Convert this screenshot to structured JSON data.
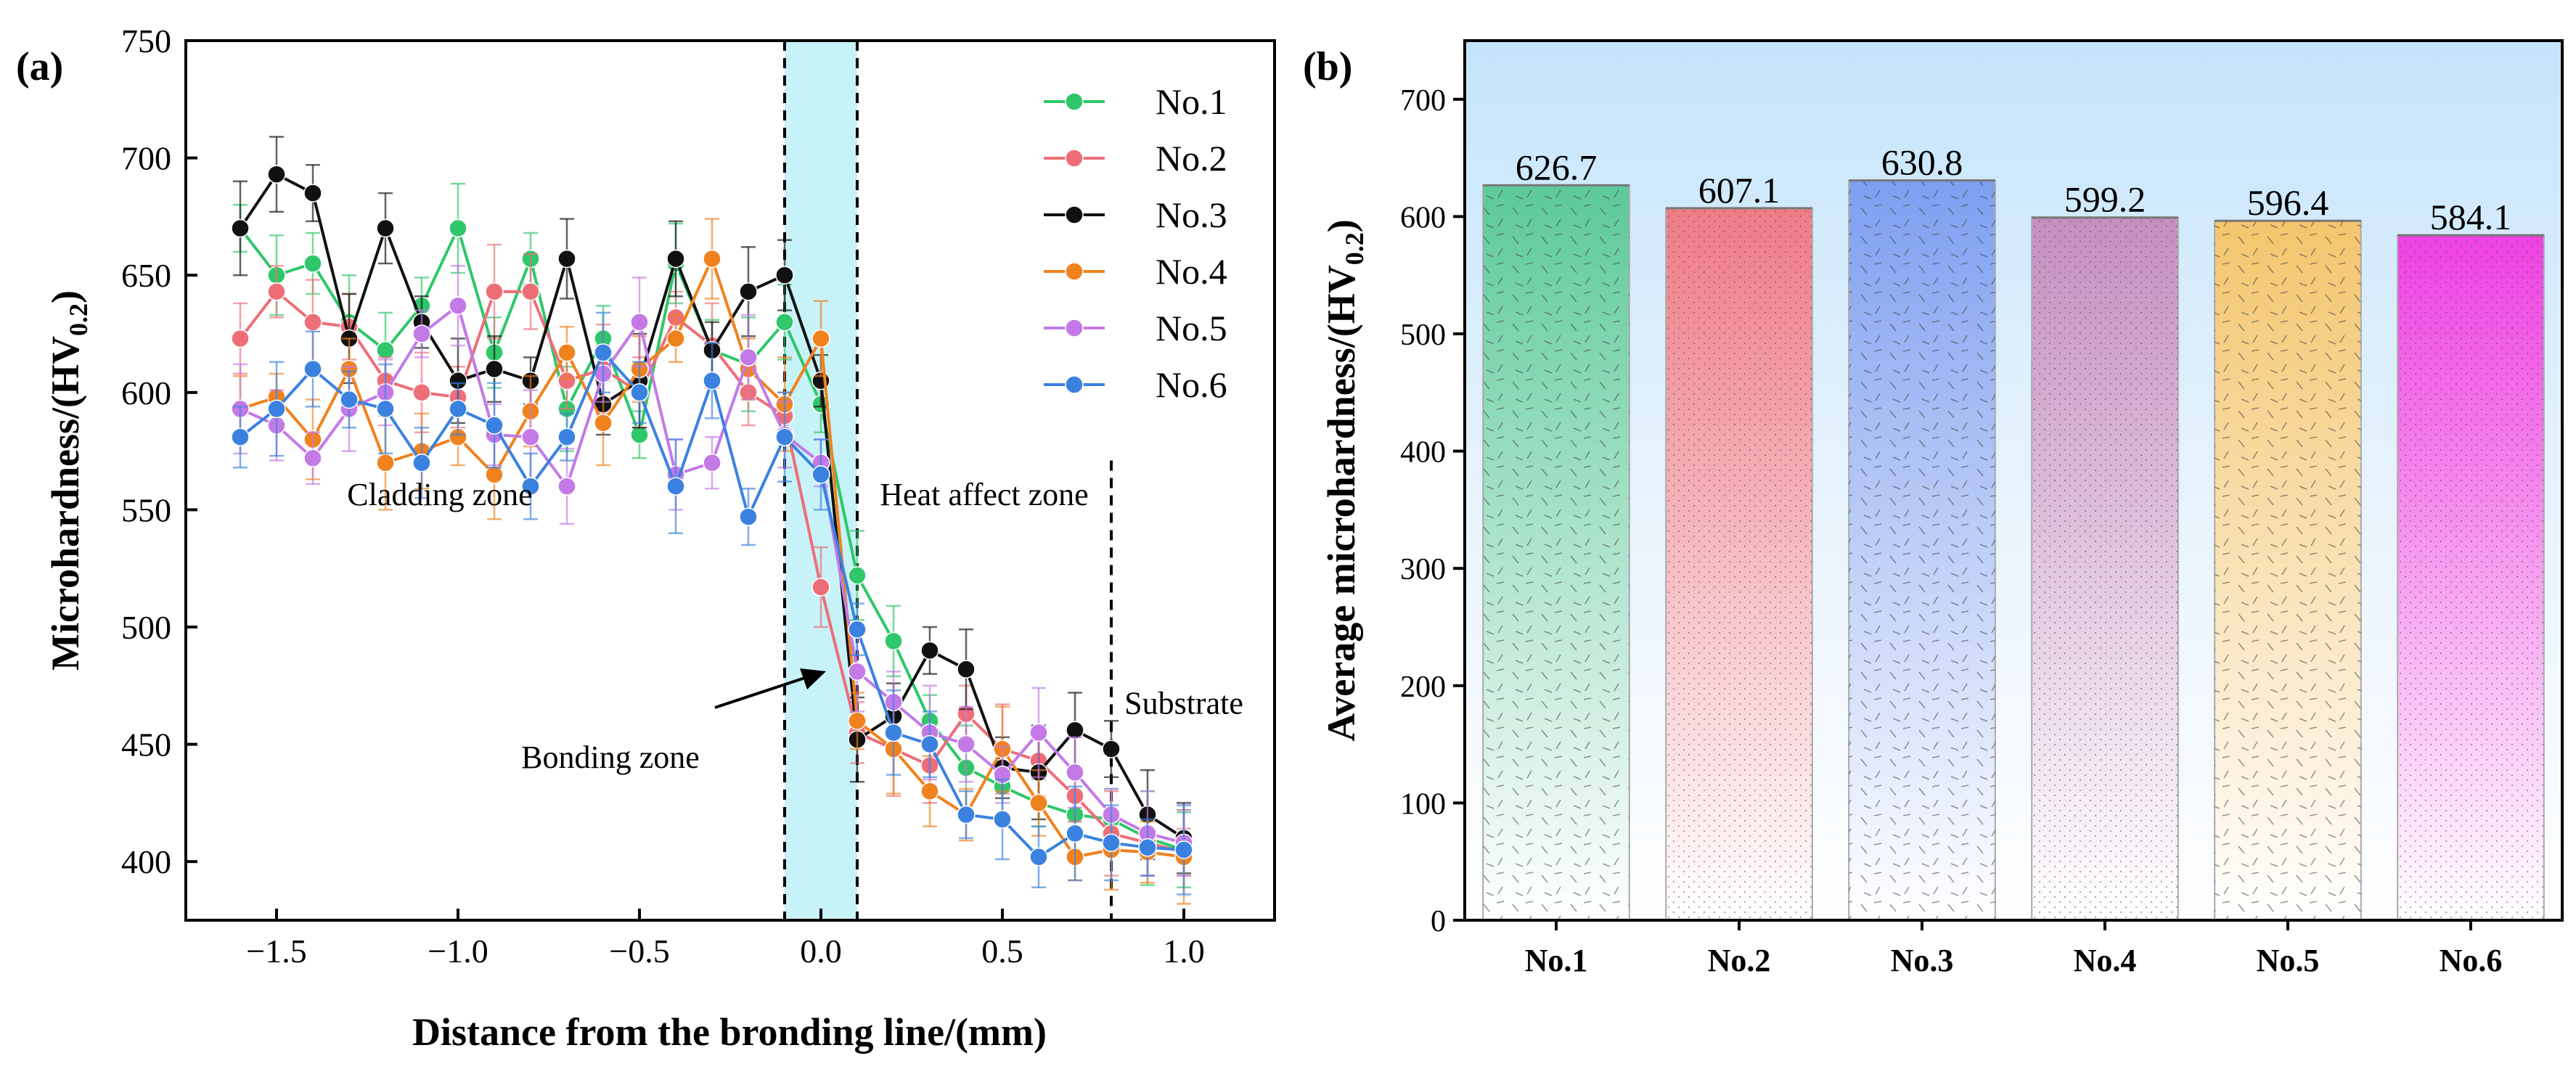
{
  "chart_data": [
    {
      "type": "line",
      "panel_label": "(a)",
      "xlabel": "Distance from the bronding line/(mm)",
      "ylabel_main": "Microhardness/(HV",
      "ylabel_sub": "0.2",
      "ylabel_close": ")",
      "xlim": [
        -1.75,
        1.25
      ],
      "ylim": [
        375,
        750
      ],
      "xticks": [
        -1.5,
        -1.0,
        -0.5,
        0.0,
        0.5,
        1.0
      ],
      "xtick_labels": [
        "−1.5",
        "−1.0",
        "−0.5",
        "0.0",
        "0.5",
        "1.0"
      ],
      "yticks": [
        400,
        450,
        500,
        550,
        600,
        650,
        700,
        750
      ],
      "ytick_labels": [
        "400",
        "450",
        "500",
        "550",
        "600",
        "650",
        "700",
        "750"
      ],
      "legend": {
        "position": "top-right"
      },
      "bonding_band": [
        -0.1,
        0.1
      ],
      "dashed_lines": [
        -0.1,
        0.1,
        0.8
      ],
      "x": [
        -1.6,
        -1.5,
        -1.4,
        -1.3,
        -1.2,
        -1.1,
        -1.0,
        -0.9,
        -0.8,
        -0.7,
        -0.6,
        -0.5,
        -0.4,
        -0.3,
        -0.2,
        -0.1,
        0.0,
        0.1,
        0.2,
        0.3,
        0.4,
        0.5,
        0.6,
        0.7,
        0.8,
        0.9,
        1.0
      ],
      "series": [
        {
          "name": "No.1",
          "color": "#2fc76a",
          "values": [
            670,
            650,
            655,
            630,
            618,
            637,
            670,
            617,
            657,
            593,
            623,
            582,
            655,
            618,
            612,
            630,
            595,
            522,
            494,
            460,
            440,
            432,
            425,
            420,
            418,
            410,
            405
          ]
        },
        {
          "name": "No.2",
          "color": "#ee6e78",
          "values": [
            623,
            643,
            630,
            628,
            605,
            600,
            598,
            643,
            643,
            605,
            610,
            600,
            632,
            620,
            600,
            590,
            517,
            455,
            448,
            441,
            463,
            448,
            443,
            428,
            412,
            408,
            404
          ]
        },
        {
          "name": "No.3",
          "color": "#111111",
          "values": [
            670,
            693,
            685,
            623,
            670,
            630,
            605,
            610,
            605,
            657,
            595,
            605,
            657,
            618,
            643,
            650,
            605,
            452,
            462,
            490,
            482,
            440,
            438,
            456,
            448,
            420,
            410
          ]
        },
        {
          "name": "No.4",
          "color": "#f0821e",
          "values": [
            593,
            598,
            580,
            610,
            570,
            575,
            581,
            565,
            592,
            617,
            587,
            610,
            623,
            657,
            610,
            595,
            623,
            460,
            448,
            430,
            420,
            448,
            425,
            402,
            405,
            404,
            402
          ]
        },
        {
          "name": "No.5",
          "color": "#c37ae6",
          "values": [
            593,
            586,
            572,
            593,
            600,
            625,
            637,
            582,
            581,
            560,
            608,
            630,
            565,
            570,
            615,
            582,
            570,
            481,
            468,
            455,
            450,
            437,
            455,
            438,
            420,
            412,
            408
          ]
        },
        {
          "name": "No.6",
          "color": "#3b82e0",
          "values": [
            581,
            593,
            610,
            597,
            593,
            570,
            593,
            586,
            560,
            581,
            617,
            600,
            560,
            605,
            547,
            581,
            565,
            499,
            455,
            450,
            420,
            418,
            402,
            412,
            408,
            406,
            405
          ]
        }
      ],
      "annotations": [
        {
          "text": "Cladding zone",
          "x": -1.05,
          "y": 552
        },
        {
          "text": "Heat affect zone",
          "x": 0.45,
          "y": 552
        },
        {
          "text": "Bonding zone",
          "x": -0.58,
          "y": 440
        },
        {
          "text": "Substrate",
          "x": 1.0,
          "y": 463
        }
      ]
    },
    {
      "type": "bar",
      "panel_label": "(b)",
      "ylabel_main": "Average microhardness/(HV",
      "ylabel_sub": "0.2",
      "ylabel_close": ")",
      "xlabel": "",
      "ylim": [
        0,
        750
      ],
      "yticks": [
        0,
        100,
        200,
        300,
        400,
        500,
        600,
        700
      ],
      "ytick_labels": [
        "0",
        "100",
        "200",
        "300",
        "400",
        "500",
        "600",
        "700"
      ],
      "categories": [
        "No.1",
        "No.2",
        "No.3",
        "No.4",
        "No.5",
        "No.6"
      ],
      "values": [
        626.7,
        607.1,
        630.8,
        599.2,
        596.4,
        584.1
      ],
      "value_labels": [
        "626.7",
        "607.1",
        "630.8",
        "599.2",
        "596.4",
        "584.1"
      ],
      "bar_colors": [
        "#5cc99a",
        "#ee7b86",
        "#7d9ff0",
        "#c58ec0",
        "#f4c56d",
        "#ee40e2"
      ]
    }
  ]
}
